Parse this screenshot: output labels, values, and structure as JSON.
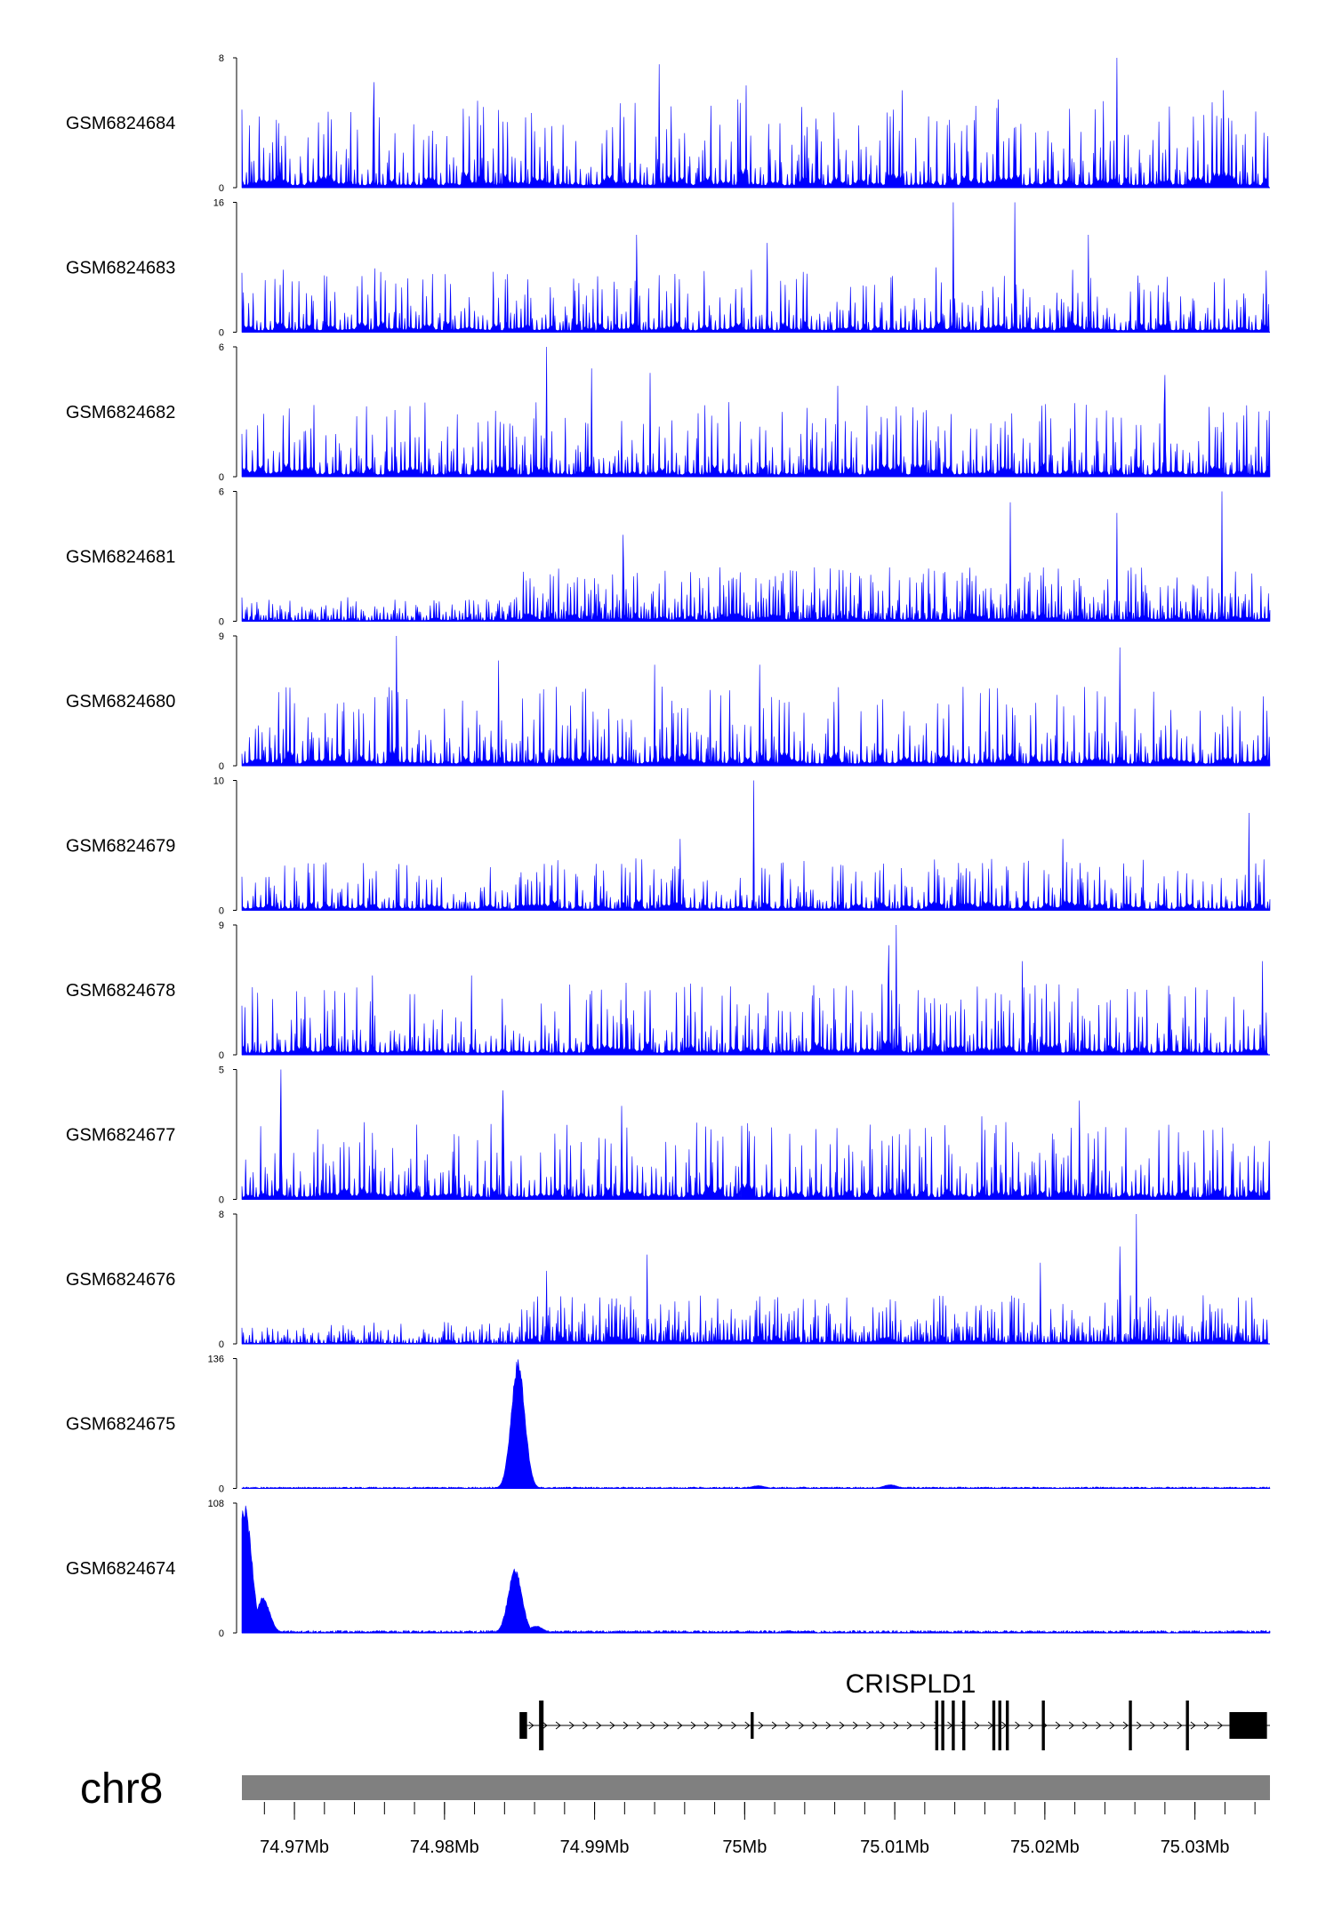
{
  "chart_data": {
    "type": "area",
    "title": "",
    "chromosome": "chr8",
    "xlim": [
      74.9665,
      75.035
    ],
    "x_unit": "Mb",
    "accent_color": "#0000ff",
    "gene_color": "#000000",
    "ideogram_color": "#808080",
    "tracks": [
      {
        "name": "GSM6824684",
        "ymax": "8",
        "ymin": "0",
        "max": 8,
        "profile": "noise",
        "seed": 11,
        "peaks": [
          [
            74.9753,
            6.5
          ],
          [
            74.9943,
            7.6
          ],
          [
            75.0001,
            6.3
          ],
          [
            75.0248,
            8.0
          ],
          [
            75.0319,
            6.0
          ],
          [
            75.0105,
            6.0
          ]
        ],
        "background": 5.5
      },
      {
        "name": "GSM6824683",
        "ymax": "16",
        "ymin": "0",
        "max": 16,
        "profile": "noise",
        "seed": 23,
        "peaks": [
          [
            74.9928,
            12.0
          ],
          [
            75.0139,
            16.0
          ],
          [
            75.018,
            16.0
          ],
          [
            75.0229,
            12.0
          ],
          [
            75.0015,
            11.0
          ]
        ],
        "background": 8.0
      },
      {
        "name": "GSM6824682",
        "ymax": "6",
        "ymin": "0",
        "max": 6,
        "profile": "noise",
        "seed": 37,
        "peaks": [
          [
            74.9868,
            6.0
          ],
          [
            74.9898,
            5.0
          ],
          [
            74.9937,
            4.8
          ],
          [
            75.0062,
            4.2
          ],
          [
            75.028,
            4.7
          ]
        ],
        "background": 3.5
      },
      {
        "name": "GSM6824681",
        "ymax": "6",
        "ymin": "0",
        "max": 6,
        "profile": "step",
        "seed": 41,
        "peaks": [
          [
            75.0177,
            5.5
          ],
          [
            75.0318,
            6.0
          ],
          [
            74.9919,
            4.0
          ],
          [
            75.0248,
            5.0
          ]
        ],
        "background": 2.5
      },
      {
        "name": "GSM6824680",
        "ymax": "9",
        "ymin": "0",
        "max": 9,
        "profile": "noise",
        "seed": 53,
        "peaks": [
          [
            74.9768,
            9.0
          ],
          [
            74.9836,
            7.3
          ],
          [
            74.994,
            7.0
          ],
          [
            75.001,
            7.0
          ],
          [
            75.025,
            8.2
          ]
        ],
        "background": 5.5
      },
      {
        "name": "GSM6824679",
        "ymax": "10",
        "ymin": "0",
        "max": 10,
        "profile": "noise",
        "seed": 67,
        "peaks": [
          [
            75.0006,
            10.0
          ],
          [
            75.0336,
            7.5
          ],
          [
            74.9957,
            5.5
          ],
          [
            75.0212,
            5.5
          ]
        ],
        "background": 4.0
      },
      {
        "name": "GSM6824678",
        "ymax": "9",
        "ymin": "0",
        "max": 9,
        "profile": "noise",
        "seed": 79,
        "peaks": [
          [
            75.0101,
            9.0
          ],
          [
            75.0096,
            7.6
          ],
          [
            74.9752,
            5.5
          ],
          [
            74.9818,
            5.5
          ],
          [
            75.0345,
            6.5
          ],
          [
            75.0185,
            6.5
          ]
        ],
        "background": 5.0
      },
      {
        "name": "GSM6824677",
        "ymax": "5",
        "ymin": "0",
        "max": 5,
        "profile": "noise",
        "seed": 83,
        "peaks": [
          [
            74.9691,
            5.0
          ],
          [
            74.9839,
            4.2
          ],
          [
            75.0223,
            3.8
          ],
          [
            74.9918,
            3.6
          ],
          [
            75.0158,
            3.2
          ]
        ],
        "background": 3.0
      },
      {
        "name": "GSM6824676",
        "ymax": "8",
        "ymin": "0",
        "max": 8,
        "profile": "step",
        "seed": 97,
        "peaks": [
          [
            75.0261,
            8.0
          ],
          [
            75.025,
            6.0
          ],
          [
            75.0197,
            5.0
          ],
          [
            74.9935,
            5.5
          ],
          [
            74.9868,
            4.5
          ]
        ],
        "background": 3.0
      },
      {
        "name": "GSM6824675",
        "ymax": "136",
        "ymin": "0",
        "max": 136,
        "profile": "sparse",
        "seed": 101,
        "peaks": [
          [
            74.9849,
            136
          ],
          [
            75.0009,
            3
          ],
          [
            75.0097,
            4
          ]
        ],
        "background": 1.5
      },
      {
        "name": "GSM6824674",
        "ymax": "108",
        "ymin": "0",
        "max": 108,
        "profile": "sparse",
        "seed": 113,
        "peaks": [
          [
            74.9667,
            108
          ],
          [
            74.9679,
            30
          ],
          [
            74.9847,
            55
          ],
          [
            74.9861,
            6
          ]
        ],
        "background": 2.0
      }
    ],
    "gene": {
      "name": "CRISPLD1",
      "strand": "+",
      "start": 74.9852,
      "end": 75.035,
      "exons": [
        {
          "pos": 74.985,
          "w": 0.0005,
          "tall": false
        },
        {
          "pos": 74.9863,
          "w": 0.0003,
          "tall": true
        },
        {
          "pos": 75.0004,
          "w": 0.0002,
          "tall": false
        },
        {
          "pos": 75.0127,
          "w": 0.0002,
          "tall": true
        },
        {
          "pos": 75.0131,
          "w": 0.0002,
          "tall": true
        },
        {
          "pos": 75.0138,
          "w": 0.0002,
          "tall": true
        },
        {
          "pos": 75.0145,
          "w": 0.0002,
          "tall": true
        },
        {
          "pos": 75.0165,
          "w": 0.0002,
          "tall": true
        },
        {
          "pos": 75.0169,
          "w": 0.0002,
          "tall": true
        },
        {
          "pos": 75.0174,
          "w": 0.0002,
          "tall": true
        },
        {
          "pos": 75.0198,
          "w": 0.0002,
          "tall": true
        },
        {
          "pos": 75.0256,
          "w": 0.0002,
          "tall": true
        },
        {
          "pos": 75.0294,
          "w": 0.0002,
          "tall": true
        },
        {
          "pos": 75.0323,
          "w": 0.0025,
          "tall": false
        }
      ]
    },
    "axis": {
      "major_ticks": [
        74.97,
        74.98,
        74.99,
        75.0,
        75.01,
        75.02,
        75.03
      ],
      "tick_labels": [
        "74.97Mb",
        "74.98Mb",
        "74.99Mb",
        "75Mb",
        "75.01Mb",
        "75.02Mb",
        "75.03Mb"
      ],
      "minor_step": 0.002
    }
  }
}
